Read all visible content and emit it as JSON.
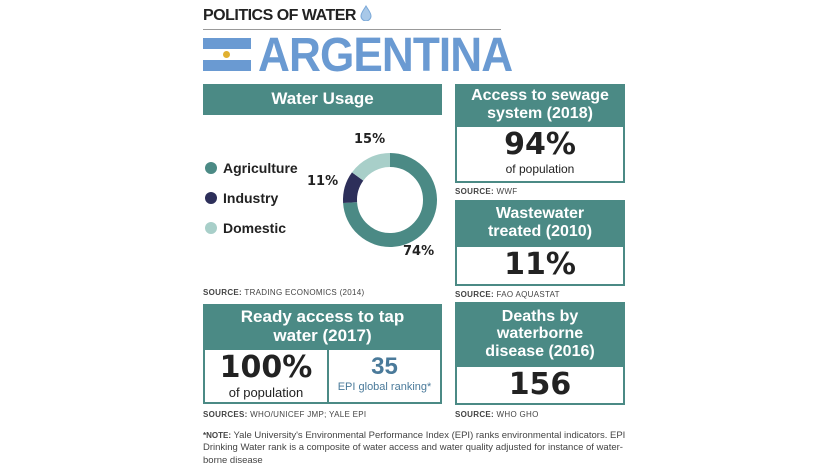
{
  "header": {
    "kicker": "POLITICS OF WATER",
    "kicker_icon": "water-drop-icon",
    "country": "ARGENTINA"
  },
  "colors": {
    "teal": "#4b8a85",
    "light_teal": "#a8cfc9",
    "navy": "#2d2f5a",
    "blue": "#6a9ad2"
  },
  "water_usage": {
    "title": "Water Usage",
    "source_label": "SOURCE:",
    "source": "TRADING ECONOMICS (2014)"
  },
  "chart_data": {
    "type": "pie",
    "title": "Water Usage",
    "categories": [
      "Agriculture",
      "Industry",
      "Domestic"
    ],
    "values": [
      74,
      11,
      15
    ],
    "labels": [
      "74%",
      "11%",
      "15%"
    ],
    "colors": [
      "#4b8a85",
      "#2d2f5a",
      "#a8cfc9"
    ],
    "legend": "left",
    "donut": true
  },
  "sewage": {
    "title": "Access to sewage system (2018)",
    "value": "94%",
    "unit": "of population",
    "source_label": "SOURCE:",
    "source": "WWF"
  },
  "wastewater": {
    "title": "Wastewater treated (2010)",
    "value": "11%",
    "source_label": "SOURCE:",
    "source": "FAO AQUASTAT"
  },
  "tap": {
    "title": "Ready access to tap water (2017)",
    "value": "100%",
    "unit": "of population",
    "rank": "35",
    "rank_label": "EPI global ranking*",
    "source_label": "SOURCES:",
    "source": "WHO/UNICEF JMP; YALE EPI"
  },
  "deaths": {
    "title": "Deaths by waterborne disease (2016)",
    "value": "156",
    "source_label": "SOURCE:",
    "source": "WHO GHO"
  },
  "note": {
    "label": "*NOTE:",
    "text": "Yale University's Environmental Performance Index (EPI) ranks environmental indicators. EPI Drinking Water rank is a composite of water access and water quality adjusted for instance of water-borne disease"
  }
}
